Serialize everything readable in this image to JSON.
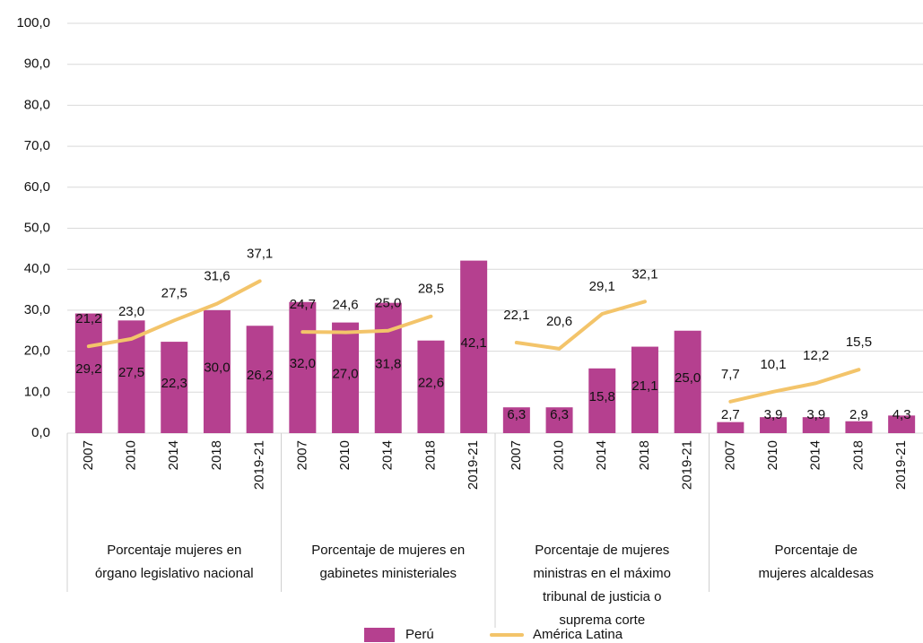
{
  "chart_data": {
    "type": "bar",
    "groups": [
      {
        "label": [
          "Porcentaje mujeres en",
          "órgano legislativo nacional"
        ],
        "categories": [
          "2007",
          "2010",
          "2014",
          "2018",
          "2019-21"
        ]
      },
      {
        "label": [
          "Porcentaje de mujeres en",
          "gabinetes ministeriales"
        ],
        "categories": [
          "2007",
          "2010",
          "2014",
          "2018",
          "2019-21"
        ]
      },
      {
        "label": [
          "Porcentaje de mujeres",
          "ministras en el máximo",
          "tribunal de justicia o",
          "suprema corte"
        ],
        "categories": [
          "2007",
          "2010",
          "2014",
          "2018",
          "2019-21"
        ]
      },
      {
        "label": [
          "Porcentaje de",
          "mujeres alcaldesas"
        ],
        "categories": [
          "2007",
          "2010",
          "2014",
          "2018",
          "2019-21"
        ]
      }
    ],
    "series": [
      {
        "name": "Perú",
        "type": "bar",
        "color": "#b5408f",
        "values": [
          29.2,
          27.5,
          22.3,
          30.0,
          26.2,
          32.0,
          27.0,
          31.8,
          22.6,
          42.1,
          6.3,
          6.3,
          15.8,
          21.1,
          25.0,
          2.7,
          3.9,
          3.9,
          2.9,
          4.3
        ],
        "value_labels": [
          "29,2",
          "27,5",
          "22,3",
          "30,0",
          "26,2",
          "32,0",
          "27,0",
          "31,8",
          "22,6",
          "42,1",
          "6,3",
          "6,3",
          "15,8",
          "21,1",
          "25,0",
          "2,7",
          "3,9",
          "3,9",
          "2,9",
          "4,3"
        ]
      },
      {
        "name": "América Latina",
        "type": "line",
        "color": "#f3c46a",
        "values": [
          21.2,
          23.0,
          27.5,
          31.6,
          37.1,
          24.7,
          24.6,
          25.0,
          28.5,
          null,
          22.1,
          20.6,
          29.1,
          32.1,
          null,
          7.7,
          10.1,
          12.2,
          15.5,
          null
        ],
        "value_labels": [
          "21,2",
          "23,0",
          "27,5",
          "31,6",
          "37,1",
          "24,7",
          "24,6",
          "25,0",
          "28,5",
          null,
          "22,1",
          "20,6",
          "29,1",
          "32,1",
          null,
          "7,7",
          "10,1",
          "12,2",
          "15,5",
          null
        ]
      }
    ],
    "ylim": [
      0,
      100
    ],
    "yticks": [
      {
        "value": 0,
        "label": "0,0"
      },
      {
        "value": 10,
        "label": "10,0"
      },
      {
        "value": 20,
        "label": "20,0"
      },
      {
        "value": 30,
        "label": "30,0"
      },
      {
        "value": 40,
        "label": "40,0"
      },
      {
        "value": 50,
        "label": "50,0"
      },
      {
        "value": 60,
        "label": "60,0"
      },
      {
        "value": 70,
        "label": "70,0"
      },
      {
        "value": 80,
        "label": "80,0"
      },
      {
        "value": 90,
        "label": "90,0"
      },
      {
        "value": 100,
        "label": "100,0"
      }
    ],
    "grid": true,
    "legend": "bottom"
  }
}
